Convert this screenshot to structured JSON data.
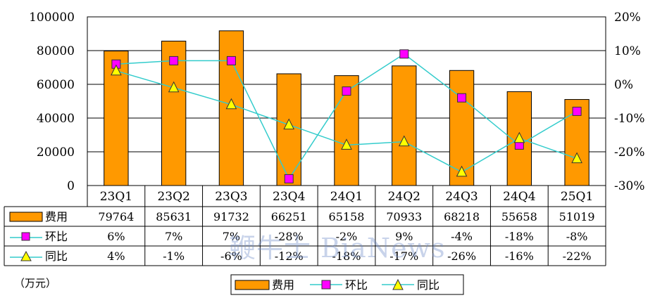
{
  "chart_data": {
    "type": "bar",
    "categories": [
      "23Q1",
      "23Q2",
      "23Q3",
      "23Q4",
      "24Q1",
      "24Q2",
      "24Q3",
      "24Q4",
      "25Q1"
    ],
    "ylim": [
      0,
      100000
    ],
    "y_ticks": [
      "0",
      "20000",
      "40000",
      "60000",
      "80000",
      "100000"
    ],
    "y2lim": [
      -30,
      20
    ],
    "y2_ticks": [
      "-30%",
      "-20%",
      "-10%",
      "0%",
      "10%",
      "20%"
    ],
    "unit_label": "（万元）",
    "grid": true,
    "legend_position": "bottom",
    "series": [
      {
        "name": "费用",
        "type": "bar",
        "axis": "left",
        "color": "#FF9900",
        "values": [
          79764,
          85631,
          91732,
          66251,
          65158,
          70933,
          68218,
          55658,
          51019
        ],
        "labels": [
          "79764",
          "85631",
          "91732",
          "66251",
          "65158",
          "70933",
          "68218",
          "55658",
          "51019"
        ]
      },
      {
        "name": "环比",
        "type": "line",
        "axis": "right",
        "color": "#33CCCC",
        "marker": "square",
        "marker_color": "#FF00FF",
        "values": [
          6,
          7,
          7,
          -28,
          -2,
          9,
          -4,
          -18,
          -8
        ],
        "labels": [
          "6%",
          "7%",
          "7%",
          "-28%",
          "-2%",
          "9%",
          "-4%",
          "-18%",
          "-8%"
        ]
      },
      {
        "name": "同比",
        "type": "line",
        "axis": "right",
        "color": "#33CCCC",
        "marker": "triangle",
        "marker_color": "#FFFF00",
        "values": [
          4,
          -1,
          -6,
          -12,
          -18,
          -17,
          -26,
          -16,
          -22
        ],
        "labels": [
          "4%",
          "-1%",
          "-6%",
          "-12%",
          "-18%",
          "-17%",
          "-26%",
          "-16%",
          "-22%"
        ]
      }
    ]
  },
  "watermark": "鞭牛士 BiaNews"
}
